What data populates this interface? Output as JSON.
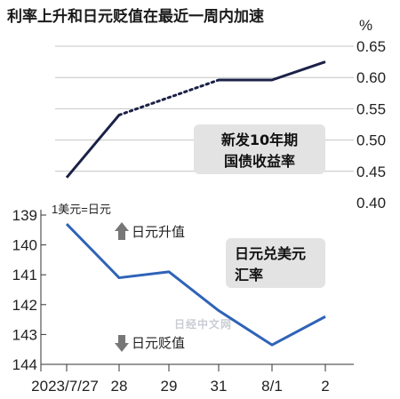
{
  "title": "利率上升和日元贬值在最近一周内加速",
  "watermark": "日经中文网",
  "chart_data": [
    {
      "type": "line",
      "series": [
        {
          "name": "新发10年期国债收益率",
          "x": [
            "2023/7/27",
            "28",
            "29",
            "31",
            "8/1",
            "2"
          ],
          "segments": [
            {
              "style": "solid",
              "points": [
                [
                  "2023/7/27",
                  0.44
                ],
                [
                  "28",
                  0.54
                ]
              ]
            },
            {
              "style": "dotted",
              "points": [
                [
                  "28",
                  0.54
                ],
                [
                  "31",
                  0.596
                ]
              ]
            },
            {
              "style": "solid",
              "points": [
                [
                  "31",
                  0.596
                ],
                [
                  "8/1",
                  0.596
                ],
                [
                  "2",
                  0.625
                ]
              ]
            }
          ],
          "color": "#1b2147"
        }
      ],
      "ylim": [
        0.4,
        0.65
      ],
      "yticks": [
        "0.65",
        "0.60",
        "0.55",
        "0.50",
        "0.45",
        "0.40"
      ],
      "yunit": "%",
      "y_axis_side": "right",
      "label_box": [
        "新发10年期",
        "国债收益率"
      ],
      "grid": "horizontal"
    },
    {
      "type": "line",
      "series": [
        {
          "name": "日元兑美元汇率",
          "x": [
            "2023/7/27",
            "28",
            "29",
            "31",
            "8/1",
            "2"
          ],
          "values": [
            139.3,
            141.1,
            140.9,
            142.2,
            143.35,
            142.4
          ],
          "color": "#2f63b8"
        }
      ],
      "ylim": [
        139,
        144
      ],
      "y_inverted": true,
      "yticks": [
        "139",
        "140",
        "141",
        "142",
        "143",
        "144"
      ],
      "y_axis_side": "left",
      "unit_note": "1美元=日元",
      "annotations": {
        "up": "日元升值",
        "down": "日元贬值"
      },
      "label_box": [
        "日元兑美元",
        "汇率"
      ],
      "xticks": [
        "2023/7/27",
        "28",
        "29",
        "31",
        "8/1",
        "2"
      ],
      "grid": "horizontal"
    }
  ],
  "colors": {
    "yield_line": "#1b2147",
    "fx_line": "#2f63b8",
    "label_box": "#e3e3e3",
    "grid": "#c4c4c4"
  }
}
